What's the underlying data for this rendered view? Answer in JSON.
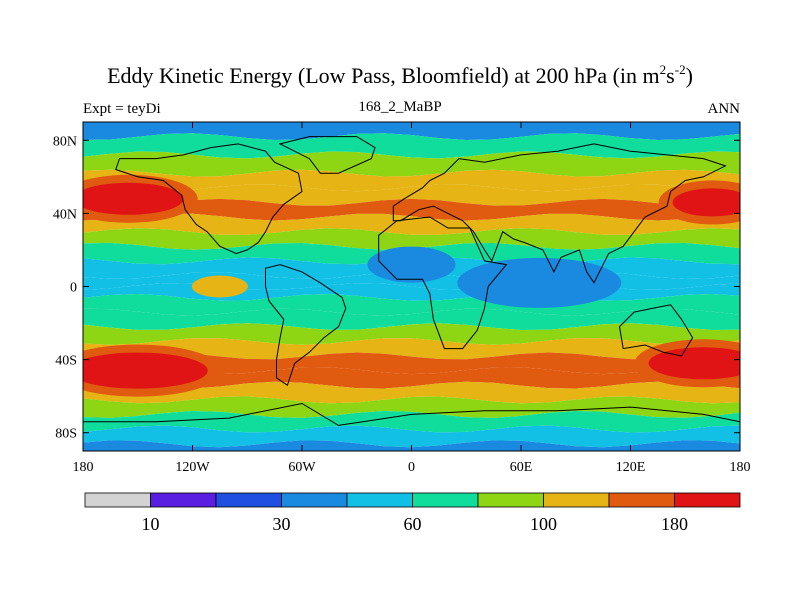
{
  "title": {
    "main": "Eddy Kinetic Energy (Low Pass, Bloomfield) at 200 hPa (in m",
    "unit_m_exp": "2",
    "unit_s": "s",
    "unit_s_exp": "-2",
    "close": ")"
  },
  "subtitles": {
    "left": "Expt = teyDi",
    "center": "168_2_MaBP",
    "right": "ANN"
  },
  "chart_data": {
    "type": "heatmap",
    "title": "Eddy Kinetic Energy (Low Pass, Bloomfield) at 200 hPa (in m2s-2)",
    "projection": "cylindrical equidistant",
    "xlim": [
      -180,
      180
    ],
    "ylim": [
      -90,
      90
    ],
    "x_ticks": [
      -180,
      -120,
      -60,
      0,
      60,
      120,
      180
    ],
    "x_tick_labels": [
      "180",
      "120W",
      "60W",
      "0",
      "60E",
      "120E",
      "180"
    ],
    "y_ticks": [
      80,
      40,
      0,
      -40,
      -80
    ],
    "y_tick_labels": [
      "80N",
      "40N",
      "0",
      "40S",
      "80S"
    ],
    "levels": [
      0,
      10,
      20,
      30,
      45,
      60,
      80,
      100,
      140,
      180,
      220
    ],
    "colorbar_labels": [
      {
        "value": 10,
        "label": "10"
      },
      {
        "value": 30,
        "label": "30"
      },
      {
        "value": 60,
        "label": "60"
      },
      {
        "value": 100,
        "label": "100"
      },
      {
        "value": 180,
        "label": "180"
      }
    ],
    "colors": [
      "#d3d3d3",
      "#5a1ee0",
      "#1e4fe0",
      "#1a8ae0",
      "#12c0e6",
      "#10dc9c",
      "#8ed614",
      "#e6b414",
      "#e05a10",
      "#e01414"
    ],
    "zonal_profile": [
      {
        "lat": 90,
        "value": 25
      },
      {
        "lat": 82,
        "value": 48
      },
      {
        "lat": 72,
        "value": 72
      },
      {
        "lat": 62,
        "value": 95
      },
      {
        "lat": 54,
        "value": 118
      },
      {
        "lat": 46,
        "value": 150
      },
      {
        "lat": 38,
        "value": 135
      },
      {
        "lat": 30,
        "value": 95
      },
      {
        "lat": 22,
        "value": 68
      },
      {
        "lat": 14,
        "value": 55
      },
      {
        "lat": 6,
        "value": 52
      },
      {
        "lat": 0,
        "value": 55
      },
      {
        "lat": -6,
        "value": 60
      },
      {
        "lat": -14,
        "value": 68
      },
      {
        "lat": -22,
        "value": 80
      },
      {
        "lat": -30,
        "value": 105
      },
      {
        "lat": -38,
        "value": 140
      },
      {
        "lat": -46,
        "value": 175
      },
      {
        "lat": -54,
        "value": 150
      },
      {
        "lat": -62,
        "value": 110
      },
      {
        "lat": -70,
        "value": 80
      },
      {
        "lat": -78,
        "value": 55
      },
      {
        "lat": -86,
        "value": 40
      },
      {
        "lat": -90,
        "value": 35
      }
    ],
    "features": [
      {
        "name": "north-pacific-jet",
        "lon": -155,
        "lat": 48,
        "value": 180
      },
      {
        "name": "north-atlantic-jet",
        "lon": 165,
        "lat": 46,
        "value": 180
      },
      {
        "name": "south-jet-west",
        "lon": -150,
        "lat": -46,
        "value": 180
      },
      {
        "name": "south-jet-east",
        "lon": 160,
        "lat": -42,
        "value": 180
      },
      {
        "name": "indian-ocean-min",
        "lon": 70,
        "lat": 2,
        "value": 30
      },
      {
        "name": "atlantic-min",
        "lon": 0,
        "lat": 12,
        "value": 30
      },
      {
        "name": "pacific-local-max",
        "lon": -105,
        "lat": 0,
        "value": 110
      }
    ]
  }
}
